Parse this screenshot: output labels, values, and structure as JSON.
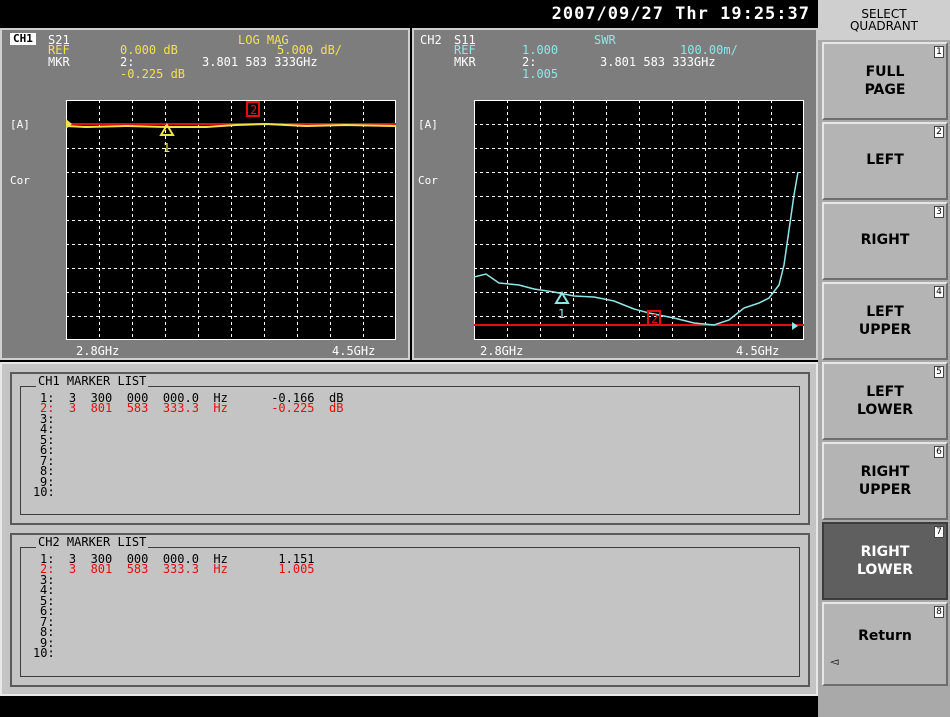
{
  "datetime": "2007/09/27 Thr 19:25:37",
  "ch1": {
    "name": "CH1",
    "param": "S21",
    "format": "LOG MAG",
    "ref_label": "REF",
    "ref_value": "0.000 dB",
    "scale": "5.000 dB/",
    "mkr_label": "MKR",
    "mkr_num": "2:",
    "mkr_freq": "3.801 583 333GHz",
    "mkr_value": "-0.225 dB",
    "trig_label": "[A]",
    "cor_label": "Cor",
    "start": "2.8GHz",
    "stop": "4.5GHz",
    "trace_color": "#f2e24a",
    "ref_line_color": "#e01010",
    "marker1": "1",
    "marker2": "2"
  },
  "ch2": {
    "name": "CH2",
    "param": "S11",
    "format": "SWR",
    "ref_label": "REF",
    "ref_value": "1.000",
    "scale": "100.00m/",
    "mkr_label": "MKR",
    "mkr_num": "2:",
    "mkr_freq": "3.801 583 333GHz",
    "mkr_value": "1.005",
    "trig_label": "[A]",
    "cor_label": "Cor",
    "start": "2.8GHz",
    "stop": "4.5GHz",
    "trace_color": "#8fe6e6",
    "ref_line_color": "#e01010",
    "marker1": "1",
    "marker2": "2"
  },
  "marker_list_1": {
    "title": "CH1  MARKER LIST",
    "rows": [
      "1:  3  300  000  000.0  Hz      -0.166  dB",
      "2:  3  801  583  333.3  Hz      -0.225  dB",
      "3:",
      "4:",
      "5:",
      "6:",
      "7:",
      "8:",
      "9:",
      "10:"
    ]
  },
  "marker_list_2": {
    "title": "CH2  MARKER LIST",
    "rows": [
      "1:  3  300  000  000.0  Hz       1.151",
      "2:  3  801  583  333.3  Hz       1.005",
      "3:",
      "4:",
      "5:",
      "6:",
      "7:",
      "8:",
      "9:",
      "10:"
    ]
  },
  "softkeys": {
    "title_line1": "SELECT",
    "title_line2": "QUADRANT",
    "keys": [
      {
        "num": "1",
        "line1": "FULL",
        "line2": "PAGE"
      },
      {
        "num": "2",
        "line1": "LEFT",
        "line2": ""
      },
      {
        "num": "3",
        "line1": "RIGHT",
        "line2": ""
      },
      {
        "num": "4",
        "line1": "LEFT",
        "line2": "UPPER"
      },
      {
        "num": "5",
        "line1": "LEFT",
        "line2": "LOWER"
      },
      {
        "num": "6",
        "line1": "RIGHT",
        "line2": "UPPER"
      },
      {
        "num": "7",
        "line1": "RIGHT",
        "line2": "LOWER"
      },
      {
        "num": "8",
        "line1": "Return",
        "line2": ""
      }
    ],
    "active_key": "7"
  }
}
